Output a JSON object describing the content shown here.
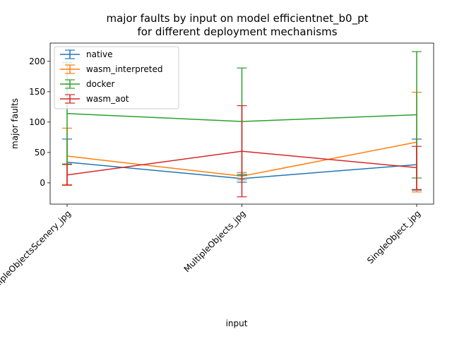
{
  "chart_data": {
    "type": "line",
    "title": [
      "major faults by input on model efficientnet_b0_pt",
      "for different deployment mechanisms"
    ],
    "xlabel": "input",
    "ylabel": "major faults",
    "categories": [
      "MultipleObjectsScenery_jpg",
      "MultipleObjects_jpg",
      "SingleObject_jpg"
    ],
    "ylim": [
      -35,
      230
    ],
    "yticks": [
      0,
      50,
      100,
      150,
      200
    ],
    "grid": false,
    "legend_position": "top-left",
    "error_bars": true,
    "series": [
      {
        "name": "native",
        "color": "#1f77b4",
        "values": [
          34,
          7,
          30
        ],
        "err_low": [
          -3,
          1,
          -12
        ],
        "err_high": [
          72,
          14,
          72
        ]
      },
      {
        "name": "wasm_interpreted",
        "color": "#ff7f0e",
        "values": [
          44,
          11,
          67
        ],
        "err_low": [
          -3,
          5,
          -15
        ],
        "err_high": [
          90,
          17,
          149
        ]
      },
      {
        "name": "docker",
        "color": "#2ca02c",
        "values": [
          114,
          101,
          112
        ],
        "err_low": [
          30,
          12,
          8
        ],
        "err_high": [
          198,
          189,
          216
        ]
      },
      {
        "name": "wasm_aot",
        "color": "#d62728",
        "values": [
          13,
          52,
          25
        ],
        "err_low": [
          -4,
          -23,
          -11
        ],
        "err_high": [
          31,
          127,
          60
        ]
      }
    ]
  }
}
